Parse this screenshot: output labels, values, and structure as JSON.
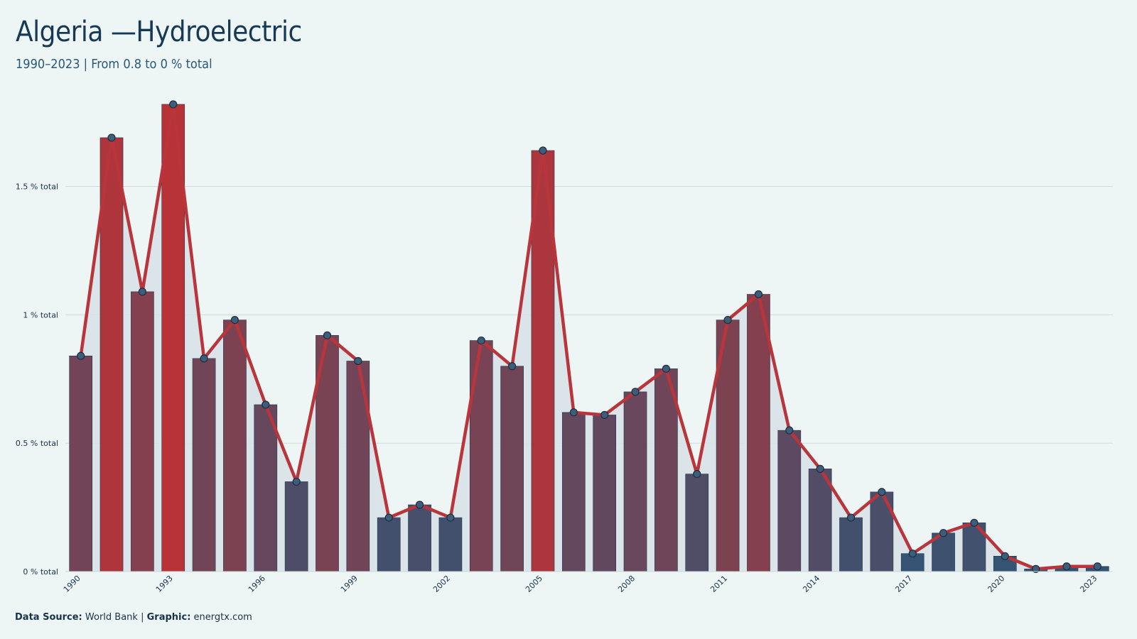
{
  "header": {
    "title": "Algeria —Hydroelectric",
    "subtitle": "1990–2023 | From 0.8 to 0 % total"
  },
  "footer": {
    "source_label": "Data Source:",
    "source_value": "World Bank",
    "separator": "|",
    "graphic_label": "Graphic:",
    "graphic_value": "energtx.com"
  },
  "colors": {
    "background": "#eef5f5",
    "line": "#b8353b",
    "bar_high": "#b73338",
    "bar_low": "#2f5576",
    "area_fill": "#d7e2e6",
    "grid": "#cfd9dc",
    "point_fill": "#3c5d7b"
  },
  "chart_data": {
    "type": "bar",
    "title": "Algeria —Hydroelectric",
    "subtitle": "1990–2023 | From 0.8 to 0 % total",
    "xlabel": "",
    "ylabel": "",
    "unit": "% total",
    "x": [
      1990,
      1991,
      1992,
      1993,
      1994,
      1995,
      1996,
      1997,
      1998,
      1999,
      2000,
      2001,
      2002,
      2003,
      2004,
      2005,
      2006,
      2007,
      2008,
      2009,
      2010,
      2011,
      2012,
      2013,
      2014,
      2015,
      2016,
      2017,
      2018,
      2019,
      2020,
      2021,
      2022,
      2023
    ],
    "values": [
      0.84,
      1.69,
      1.09,
      1.82,
      0.83,
      0.98,
      0.65,
      0.35,
      0.92,
      0.82,
      0.21,
      0.26,
      0.21,
      0.9,
      0.8,
      1.64,
      0.62,
      0.61,
      0.7,
      0.79,
      0.38,
      0.98,
      1.08,
      0.55,
      0.4,
      0.21,
      0.31,
      0.07,
      0.15,
      0.19,
      0.06,
      0.01,
      0.02,
      0.02
    ],
    "xtick_labels": [
      "1990",
      "1993",
      "1996",
      "1999",
      "2002",
      "2005",
      "2008",
      "2011",
      "2014",
      "2017",
      "2020",
      "2023"
    ],
    "yticks": [
      0,
      0.5,
      1,
      1.5
    ],
    "ytick_labels": [
      "0 % total",
      "0.5 % total",
      "1 % total",
      "1.5 % total"
    ],
    "ylim": [
      0,
      1.9
    ],
    "grid": true,
    "legend": "none"
  }
}
